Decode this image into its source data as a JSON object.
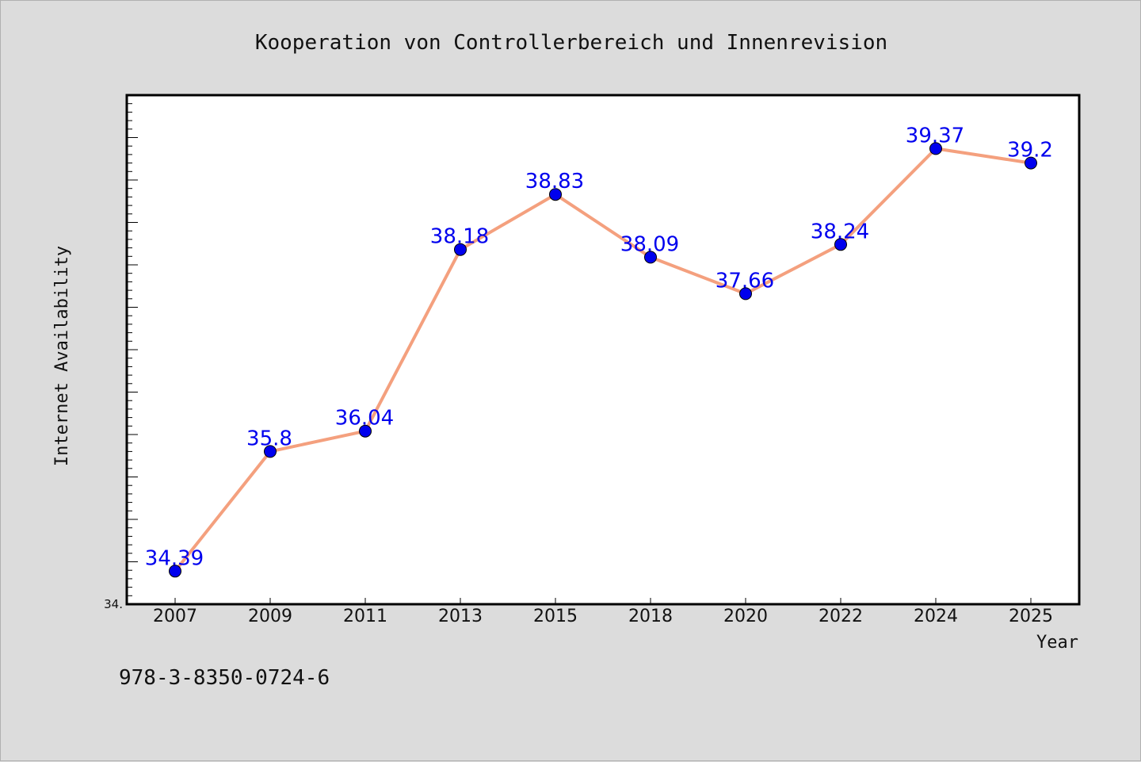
{
  "chart_data": {
    "type": "line",
    "title": "Kooperation von Controllerbereich und Innenrevision",
    "xlabel": "Year",
    "ylabel": "Internet Availability",
    "categories": [
      "2007",
      "2009",
      "2011",
      "2013",
      "2015",
      "2018",
      "2020",
      "2022",
      "2024",
      "2025"
    ],
    "series": [
      {
        "values": [
          34.39,
          35.8,
          36.04,
          38.18,
          38.83,
          38.09,
          37.66,
          38.24,
          39.37,
          39.2
        ],
        "labels": [
          "34.39",
          "35.8",
          "36.04",
          "38.18",
          "38.83",
          "38.09",
          "37.66",
          "38.24",
          "39.37",
          "39.2"
        ]
      }
    ],
    "ylim": [
      34.0,
      40.0
    ],
    "y_tick_label": "34.",
    "grid": false,
    "line_color": "#f4a07e",
    "marker_color": "#0000ee",
    "label_color": "#0000ee"
  },
  "footnote": "978-3-8350-0724-6"
}
